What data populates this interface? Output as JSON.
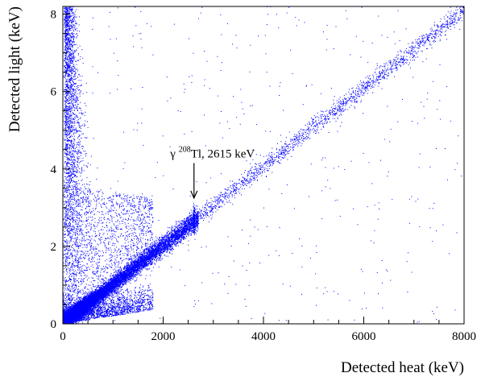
{
  "chart_data": {
    "type": "scatter",
    "xlabel": "Detected heat (keV)",
    "ylabel": "Detected light (keV)",
    "xlim": [
      0,
      8000
    ],
    "ylim": [
      0,
      8.2
    ],
    "x_ticks": [
      0,
      2000,
      4000,
      6000,
      8000
    ],
    "y_ticks": [
      0,
      2,
      4,
      6,
      8
    ],
    "x_tick_labels": [
      "0",
      "2000",
      "4000",
      "6000",
      "8000"
    ],
    "y_tick_labels": [
      "0",
      "2",
      "4",
      "6",
      "8"
    ],
    "grid": false,
    "point_color": "#0000ff",
    "annotation": {
      "prefix": "γ ",
      "superscript": "208",
      "suffix": "Tl, 2615 keV",
      "arrow_tip": {
        "x": 2615,
        "y": 3.25
      },
      "text_anchor": {
        "x": 2615,
        "y": 4.3
      }
    },
    "populations": [
      {
        "name": "beta-gamma band",
        "x_range": [
          0,
          8000
        ],
        "light_per_heat": 0.00101,
        "y_sigma": 0.12
      },
      {
        "name": "low-energy cluster",
        "x_center": 150,
        "y_center": 0.15,
        "x_spread": 250,
        "y_spread": 0.35
      },
      {
        "name": "high-light vertical band",
        "x_range": [
          30,
          350
        ],
        "y_range": [
          0.2,
          8.2
        ]
      },
      {
        "name": "gamma line 2615 keV",
        "x": 2615,
        "y": 2.64
      }
    ],
    "sample_points": [
      [
        500,
        0.5
      ],
      [
        1000,
        1.0
      ],
      [
        1500,
        1.5
      ],
      [
        2000,
        2.0
      ],
      [
        2615,
        2.64
      ],
      [
        3000,
        3.0
      ],
      [
        4000,
        4.05
      ],
      [
        5000,
        5.1
      ],
      [
        6000,
        6.1
      ],
      [
        7000,
        7.15
      ],
      [
        7900,
        8.05
      ]
    ]
  }
}
